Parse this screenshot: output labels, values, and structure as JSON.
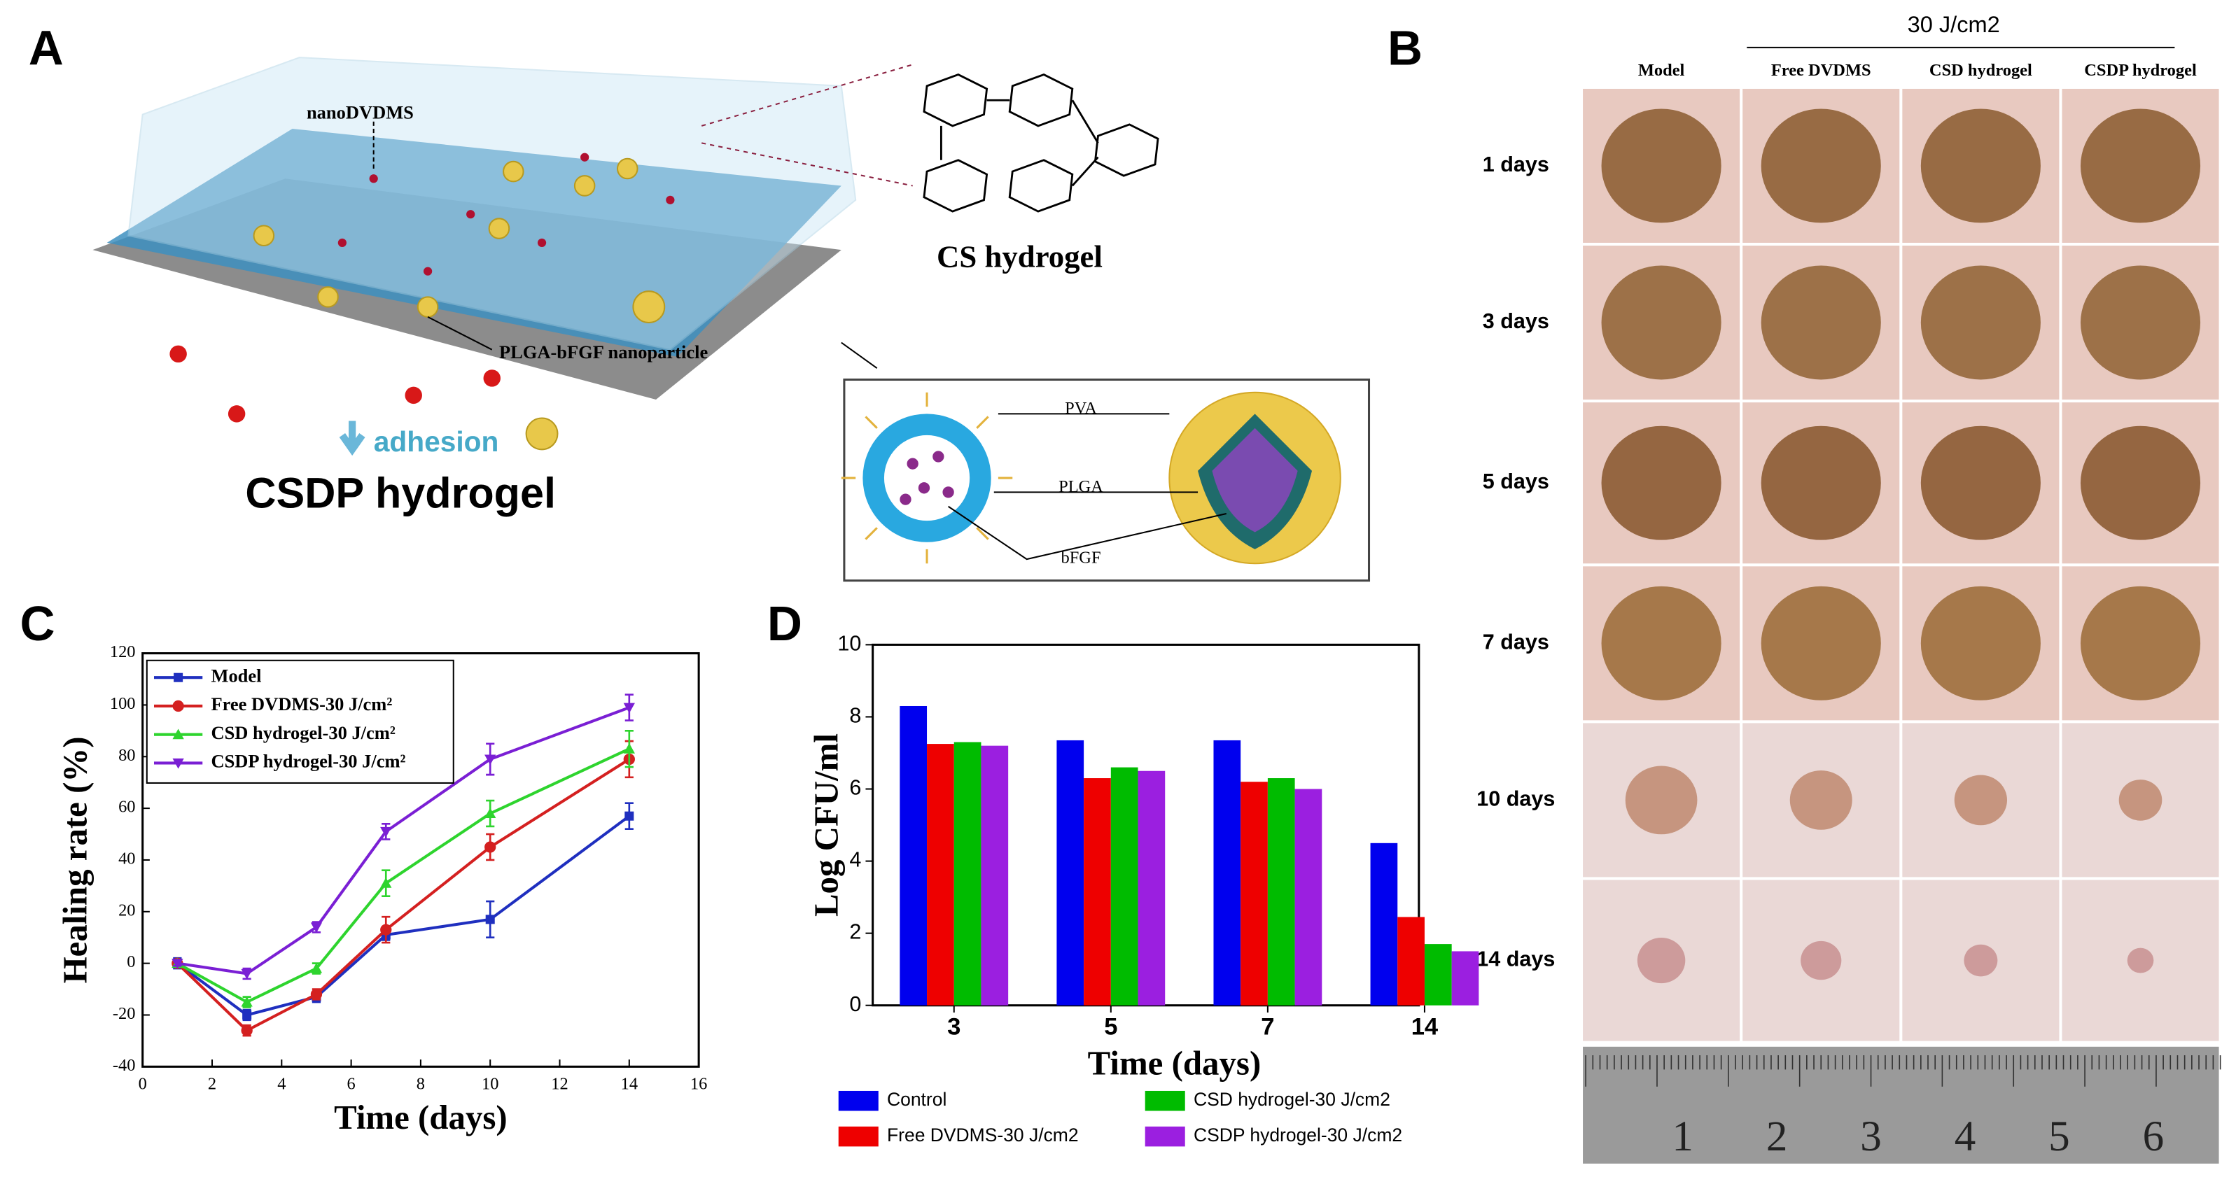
{
  "panel_labels": [
    "A",
    "B",
    "C",
    "D"
  ],
  "diagram": {
    "nano_label": "nanoDVDMS",
    "particle_label": "PLGA-bFGF nanoparticle",
    "adhesion": "adhesion",
    "product": "CSDP hydrogel",
    "gel": "CS hydrogel",
    "layers": [
      "PVA",
      "PLGA",
      "bFGF"
    ]
  },
  "photos": {
    "header": "30 J/cm2",
    "columns": [
      "Model",
      "Free DVDMS",
      "CSD hydrogel",
      "CSDP hydrogel"
    ],
    "rows": [
      "1 days",
      "3 days",
      "5 days",
      "7 days",
      "10 days",
      "14 days"
    ],
    "ruler": [
      "1",
      "2",
      "3",
      "4",
      "5",
      "6"
    ]
  },
  "chart_data": [
    {
      "type": "line",
      "xlabel": "Time (days)",
      "ylabel": "Healing rate (%)",
      "x": [
        1,
        3,
        5,
        7,
        10,
        14
      ],
      "xlim": [
        0,
        16
      ],
      "xticks": [
        0,
        2,
        4,
        6,
        8,
        10,
        12,
        14,
        16
      ],
      "ylim": [
        -40,
        120
      ],
      "yticks": [
        -40,
        -20,
        0,
        20,
        40,
        60,
        80,
        100,
        120
      ],
      "legend": "upper left",
      "series": [
        {
          "name": "Model",
          "color": "#1f2fbf",
          "marker": "square",
          "values": [
            0,
            -20,
            -13,
            11,
            17,
            57
          ],
          "errors": [
            2,
            2,
            2,
            2,
            7,
            5
          ]
        },
        {
          "name": "Free DVDMS-30 J/cm²",
          "color": "#d42020",
          "marker": "circle",
          "values": [
            0,
            -26,
            -12,
            13,
            45,
            79
          ],
          "errors": [
            1,
            2,
            2,
            5,
            5,
            7
          ]
        },
        {
          "name": "CSD hydrogel-30 J/cm²",
          "color": "#2ed42e",
          "marker": "triangle-up",
          "values": [
            0,
            -15,
            -2,
            31,
            58,
            83
          ],
          "errors": [
            1,
            2,
            2,
            5,
            5,
            7
          ]
        },
        {
          "name": "CSDP hydrogel-30 J/cm²",
          "color": "#7a1fd4",
          "marker": "triangle-down",
          "values": [
            0,
            -4,
            14,
            51,
            79,
            99
          ],
          "errors": [
            1,
            2,
            2,
            3,
            6,
            5
          ]
        }
      ]
    },
    {
      "type": "bar",
      "xlabel": "Time (days)",
      "ylabel": "Log CFU/ml",
      "categories": [
        "3",
        "5",
        "7",
        "14"
      ],
      "ylim": [
        0,
        10
      ],
      "yticks": [
        0,
        2,
        4,
        6,
        8,
        10
      ],
      "series": [
        {
          "name": "Control",
          "color": "#0000ee",
          "values": [
            8.3,
            7.35,
            7.35,
            4.5
          ]
        },
        {
          "name": "Free DVDMS-30 J/cm2",
          "color": "#ee0000",
          "values": [
            7.25,
            6.3,
            6.2,
            2.45
          ]
        },
        {
          "name": "CSD hydrogel-30 J/cm2",
          "color": "#00bb00",
          "values": [
            7.3,
            6.6,
            6.3,
            1.7
          ]
        },
        {
          "name": "CSDP hydrogel-30 J/cm2",
          "color": "#9b1fe0",
          "values": [
            7.2,
            6.5,
            6.0,
            1.5
          ]
        }
      ]
    }
  ]
}
